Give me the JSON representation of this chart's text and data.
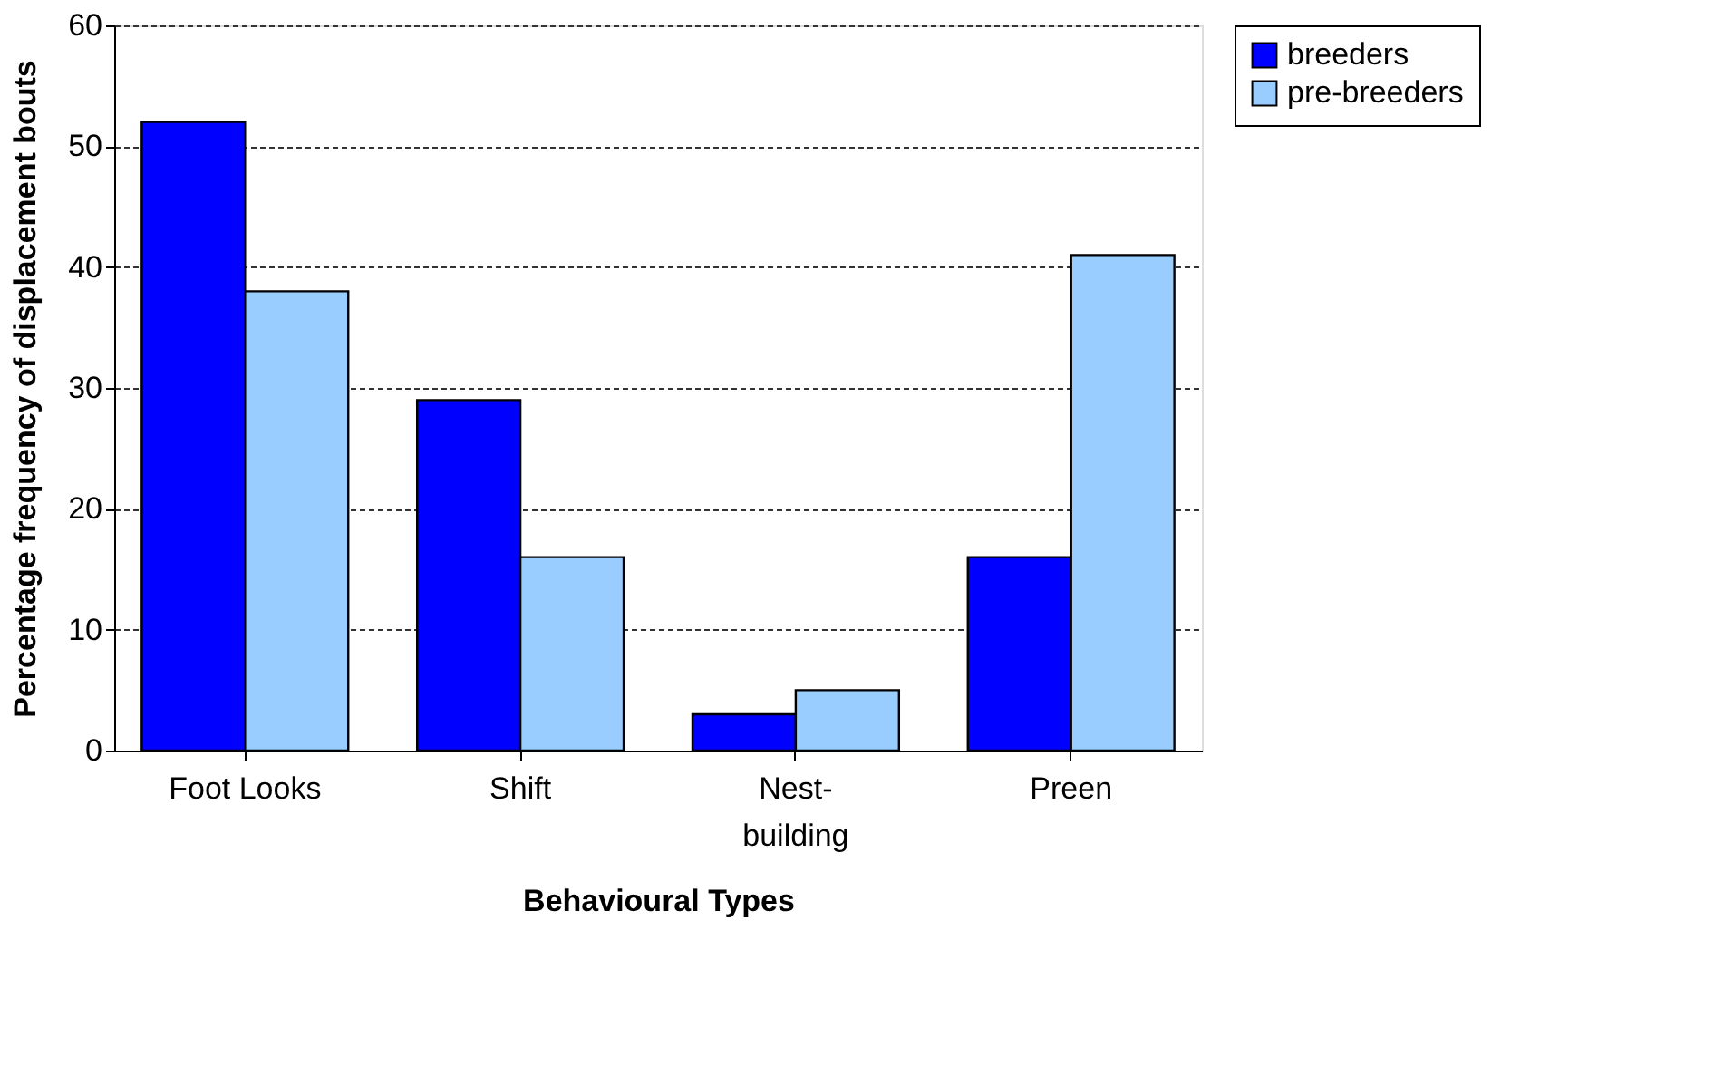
{
  "chart_data": {
    "type": "bar",
    "xlabel": "Behavioural Types",
    "ylabel": "Percentage frequency of displacement bouts",
    "categories": [
      "Foot Looks",
      "Shift",
      "Nest-building",
      "Preen"
    ],
    "series": [
      {
        "name": "breeders",
        "color": "#0000ff",
        "values": [
          52,
          29,
          3,
          16
        ]
      },
      {
        "name": "pre-breeders",
        "color": "#99ccff",
        "values": [
          38,
          16,
          5,
          41
        ]
      }
    ],
    "ylim": [
      0,
      60
    ],
    "yticks": [
      0,
      10,
      20,
      30,
      40,
      50,
      60
    ],
    "grid": "y",
    "legend": "right"
  }
}
